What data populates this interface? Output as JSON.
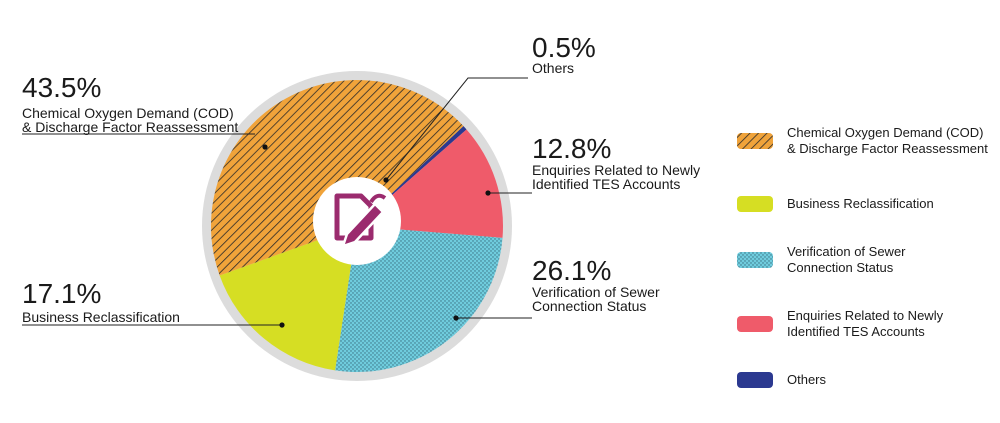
{
  "chart_data": {
    "type": "pie",
    "slices": [
      {
        "name": "Chemical Oxygen Demand (COD) & Discharge Factor Reassessment",
        "value": 43.5,
        "percent_label": "43.5%",
        "label_lines": [
          "Chemical Oxygen Demand (COD)",
          "& Discharge Factor Reassessment"
        ],
        "color": "#F0A33A",
        "pattern": "diagonal-stripes",
        "label_side": "left"
      },
      {
        "name": "Business Reclassification",
        "value": 17.1,
        "percent_label": "17.1%",
        "label_lines": [
          "Business Reclassification"
        ],
        "color": "#D6DE23",
        "pattern": "solid",
        "label_side": "left"
      },
      {
        "name": "Verification of Sewer Connection Status",
        "value": 26.1,
        "percent_label": "26.1%",
        "label_lines": [
          "Verification of Sewer",
          "Connection Status"
        ],
        "color": "#6FCCDD",
        "pattern": "dots",
        "label_side": "right"
      },
      {
        "name": "Enquiries Related to Newly Identified TES Accounts",
        "value": 12.8,
        "percent_label": "12.8%",
        "label_lines": [
          "Enquiries Related to Newly",
          "Identified TES Accounts"
        ],
        "color": "#EF5B6A",
        "pattern": "solid",
        "label_side": "right"
      },
      {
        "name": "Others",
        "value": 0.5,
        "percent_label": "0.5%",
        "label_lines": [
          "Others"
        ],
        "color": "#2B3990",
        "pattern": "solid",
        "label_side": "right"
      }
    ],
    "legend": {
      "placement": "right",
      "entries": [
        {
          "lines": [
            "Chemical Oxygen Demand (COD)",
            "& Discharge Factor Reassessment"
          ],
          "color": "#F0A33A",
          "pattern": "diagonal-stripes"
        },
        {
          "lines": [
            "Business Reclassification"
          ],
          "color": "#D6DE23",
          "pattern": "solid"
        },
        {
          "lines": [
            "Verification of Sewer",
            "Connection Status"
          ],
          "color": "#6FCCDD",
          "pattern": "dots"
        },
        {
          "lines": [
            "Enquiries Related to Newly",
            "Identified TES Accounts"
          ],
          "color": "#EF5B6A",
          "pattern": "solid"
        },
        {
          "lines": [
            "Others"
          ],
          "color": "#2B3990",
          "pattern": "solid"
        }
      ]
    },
    "center_icon": "edit-document-icon",
    "center_icon_color": "#9B2B6E",
    "ring_color": "#DCDCDC"
  }
}
